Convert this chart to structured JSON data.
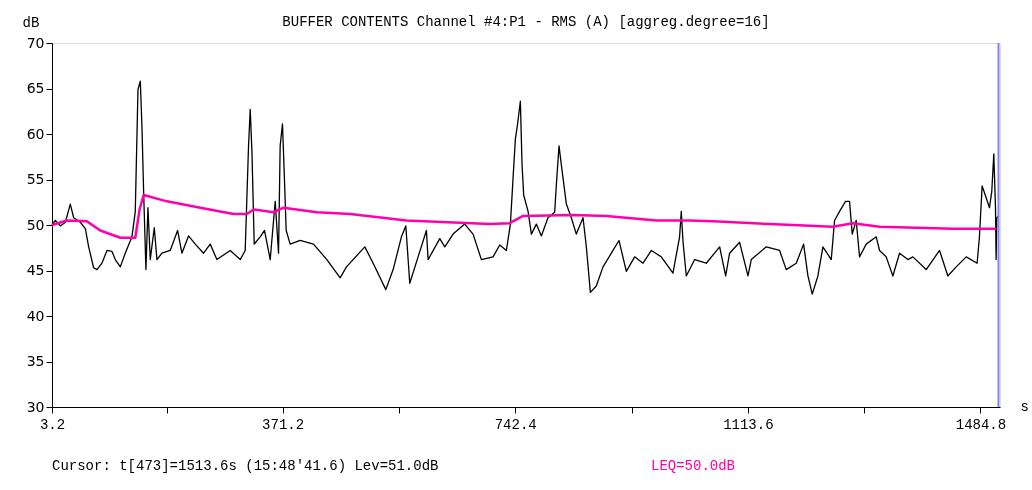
{
  "chart_data": {
    "type": "line",
    "title": "BUFFER CONTENTS  Channel #4:P1  -  RMS (A) [aggreg.degree=16]",
    "xlabel": "s",
    "ylabel": "dB",
    "xlim": [
      3.2,
      1516
    ],
    "ylim": [
      30,
      70
    ],
    "xticks": [
      3.2,
      {
        "value": 187.2,
        "label": null
      },
      371.2,
      {
        "value": 556.8,
        "label": null
      },
      742.4,
      {
        "value": 928,
        "label": null
      },
      1113.6,
      {
        "value": 1299.2,
        "label": null
      },
      1484.8
    ],
    "yticks": [
      30,
      35,
      40,
      45,
      50,
      55,
      60,
      65,
      70
    ],
    "marker": "none",
    "line_style": "solid",
    "series": [
      {
        "color": "#000000",
        "x": [
          3.2,
          8.5,
          16.5,
          24.5,
          32.4,
          37.8,
          48.4,
          56.4,
          61.7,
          69.6,
          75,
          82.9,
          90.9,
          98.9,
          104.2,
          112.2,
          120.1,
          130.8,
          136.1,
          140.4,
          144.1,
          146.7,
          149.4,
          153.1,
          156.3,
          160.0,
          166.4,
          170.7,
          178.6,
          191.9,
          203.6,
          210.5,
          221.1,
          231.8,
          245.1,
          255.7,
          266.3,
          287.6,
          303.6,
          311.5,
          316.8,
          319.5,
          322.2,
          325.9,
          335.4,
          342.3,
          351.4,
          359.4,
          364.7,
          367.3,
          371.0,
          373.7,
          376.9,
          383.3,
          399.2,
          420.5,
          441.8,
          463.1,
          473.1,
          502.4,
          515.7,
          535.9,
          547.6,
          560.8,
          567.8,
          574.1,
          587.4,
          600.7,
          603.4,
          622.0,
          630.0,
          643.2,
          661.8,
          675.1,
          688.4,
          707.0,
          717.7,
          728.3,
          734.7,
          738.9,
          742.7,
          745.8,
          750.6,
          753.3,
          755.9,
          762.9,
          768.2,
          776.1,
          784.1,
          794.7,
          805.4,
          808.0,
          812.3,
          816.0,
          824.0,
          831.9,
          839.9,
          850.6,
          855.9,
          862.3,
          871.8,
          882.5,
          895.8,
          908.0,
          919.7,
          933.0,
          946.3,
          959.6,
          975.5,
          994.1,
          1004.7,
          1007.4,
          1010.0,
          1015.4,
          1028.7,
          1047.3,
          1068.6,
          1078.2,
          1084.5,
          1100.5,
          1113.8,
          1119.1,
          1143.0,
          1164.3,
          1174.9,
          1190.9,
          1202.6,
          1209.5,
          1216.4,
          1225.4,
          1233.4,
          1246.7,
          1252.0,
          1260.0,
          1269.5,
          1275.9,
          1280.2,
          1286.5,
          1291.9,
          1302.5,
          1318.5,
          1323.8,
          1334.4,
          1345.0,
          1355.7,
          1369.0,
          1377.0,
          1398.2,
          1419.5,
          1432.8,
          1446.1,
          1462.1,
          1479.5,
          1483.2,
          1487.5,
          1493.9,
          1499.2,
          1502.9,
          1506.1,
          1508.8,
          1509.8,
          1510.9,
          1513.6
        ],
        "values": [
          50.0,
          50.5,
          49.9,
          50.3,
          52.3,
          50.8,
          50.3,
          49.6,
          47.6,
          45.3,
          45.1,
          45.8,
          47.2,
          47.1,
          46.2,
          45.4,
          46.9,
          48.7,
          51.5,
          64.9,
          65.8,
          60.9,
          53.7,
          45.1,
          51.9,
          46.2,
          49.7,
          46.2,
          46.9,
          47.2,
          49.4,
          46.9,
          48.8,
          47.9,
          46.9,
          47.9,
          46.2,
          47.2,
          46.2,
          47.2,
          58.6,
          62.7,
          58.2,
          47.9,
          48.7,
          49.4,
          46.2,
          52.6,
          46.9,
          58.7,
          61.1,
          55.9,
          49.4,
          47.9,
          48.3,
          47.9,
          46.2,
          44.2,
          45.4,
          47.6,
          45.8,
          42.9,
          45.1,
          48.7,
          49.9,
          43.6,
          46.5,
          49.4,
          46.2,
          48.5,
          47.6,
          49.0,
          50.1,
          49.0,
          46.2,
          46.5,
          47.8,
          47.2,
          50.1,
          55.1,
          59.5,
          60.9,
          63.6,
          56.6,
          53.3,
          51.5,
          49.0,
          50.1,
          48.8,
          50.8,
          51.4,
          54.4,
          58.7,
          56.6,
          52.3,
          50.8,
          49.0,
          50.8,
          47.6,
          42.6,
          43.3,
          45.4,
          46.9,
          48.3,
          44.9,
          46.5,
          45.8,
          47.2,
          46.5,
          44.7,
          48.7,
          51.5,
          48.3,
          44.4,
          46.2,
          45.8,
          47.6,
          44.4,
          46.9,
          48.1,
          44.4,
          46.2,
          47.6,
          47.2,
          45.1,
          45.8,
          47.9,
          44.4,
          42.4,
          44.4,
          47.6,
          46.2,
          50.5,
          51.5,
          52.6,
          52.6,
          49.0,
          50.5,
          46.5,
          47.9,
          48.7,
          47.2,
          46.5,
          44.4,
          46.9,
          46.2,
          46.5,
          45.1,
          47.2,
          44.4,
          45.4,
          46.5,
          45.8,
          48.7,
          54.3,
          53.0,
          51.9,
          53.7,
          57.8,
          51.9,
          46.2,
          50.8,
          51.0
        ]
      },
      {
        "color": "#ff00aa",
        "x": [
          3.2,
          27.1,
          59,
          80.3,
          112.2,
          136.1,
          143.0,
          149.4,
          186.6,
          239.8,
          292.9,
          314.2,
          324.8,
          356.7,
          372.6,
          425.8,
          479,
          568.8,
          701.7,
          733.6,
          754.9,
          834.6,
          887.8,
          967.5,
          1020.7,
          1058,
          1148.3,
          1249.3,
          1281.2,
          1323.8,
          1440.7,
          1509.8
        ],
        "values": [
          50.0,
          50.5,
          50.4,
          49.4,
          48.6,
          48.6,
          51.7,
          53.3,
          52.6,
          51.9,
          51.2,
          51.2,
          51.7,
          51.4,
          51.9,
          51.4,
          51.2,
          50.5,
          50.1,
          50.2,
          51.0,
          51.1,
          51.0,
          50.5,
          50.5,
          50.4,
          50.1,
          49.8,
          50.2,
          49.8,
          49.6,
          49.6
        ]
      }
    ],
    "ref_lines": [
      {
        "axis": "x",
        "value": 1513.6,
        "color": "#8080ff"
      }
    ],
    "annotations": [
      "Cursor:    t[473]=1513.6s (15:48'41.6)    Lev=51.0dB",
      "LEQ=50.0dB"
    ]
  }
}
